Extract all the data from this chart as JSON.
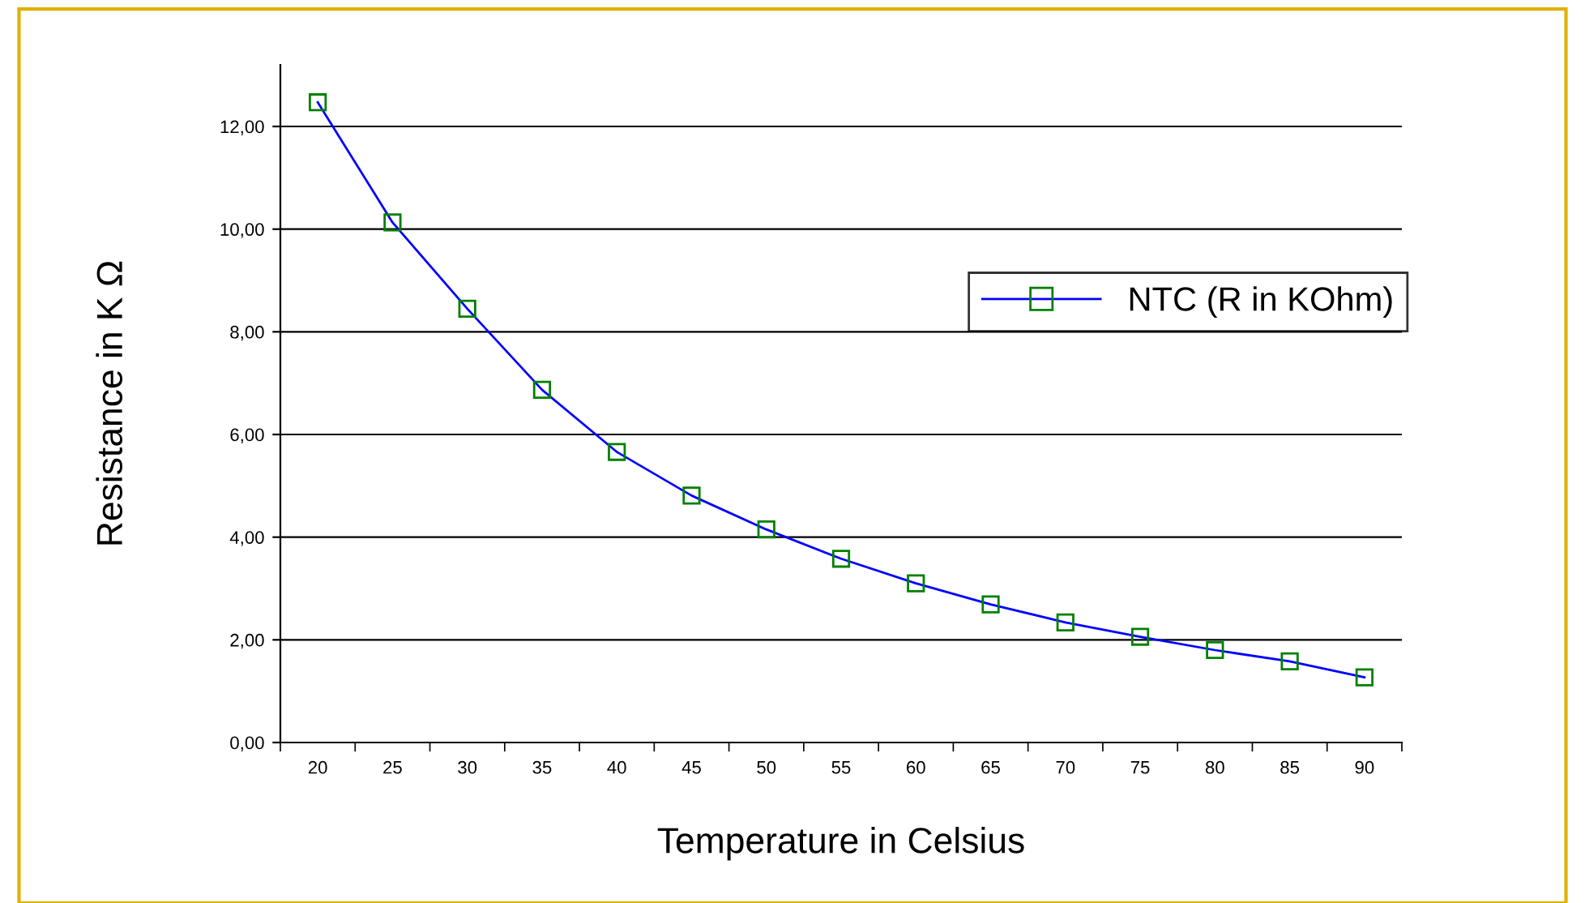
{
  "chart_data": {
    "type": "line",
    "xlabel": "Temperature in Celsius",
    "ylabel": "Resistance in K Ω",
    "categories": [
      "20",
      "25",
      "30",
      "35",
      "40",
      "45",
      "50",
      "55",
      "60",
      "65",
      "70",
      "75",
      "80",
      "85",
      "90"
    ],
    "series": [
      {
        "name": "NTC (R in KOhm)",
        "color": "#0000ff",
        "values": [
          12.47,
          10.13,
          8.45,
          6.87,
          5.66,
          4.81,
          4.15,
          3.58,
          3.1,
          2.69,
          2.34,
          2.06,
          1.8,
          1.58,
          1.27
        ]
      }
    ],
    "ylim": [
      0,
      13.2
    ],
    "yticks": [
      {
        "value": 0,
        "label": "0,00"
      },
      {
        "value": 2,
        "label": "2,00"
      },
      {
        "value": 4,
        "label": "4,00"
      },
      {
        "value": 6,
        "label": "6,00"
      },
      {
        "value": 8,
        "label": "8,00"
      },
      {
        "value": 10,
        "label": "10,00"
      },
      {
        "value": 12,
        "label": "12,00"
      }
    ],
    "grid": "y",
    "legend": "right",
    "marker": "square",
    "line_style": "solid"
  }
}
